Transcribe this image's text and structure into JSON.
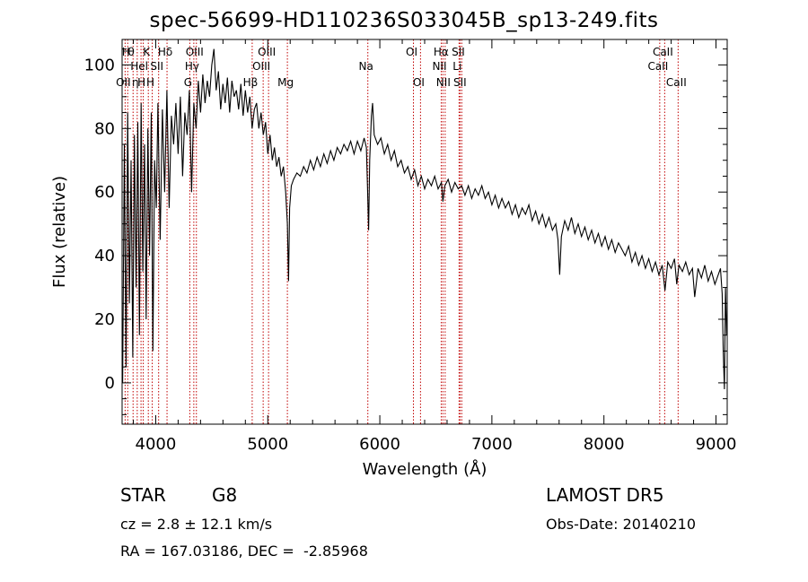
{
  "title": "spec-56699-HD110236S033045B_sp13-249.fits",
  "info": {
    "class_label": "STAR",
    "subclass_label": "G8",
    "survey": "LAMOST DR5",
    "cz": "cz = 2.8 ± 12.1 km/s",
    "obs_date": "Obs-Date: 20140210",
    "coords": "RA = 167.03186, DEC =  -2.85968"
  },
  "chart_data": {
    "type": "line",
    "title": "spec-56699-HD110236S033045B_sp13-249.fits",
    "xlabel": "Wavelength (Å)",
    "ylabel": "Flux (relative)",
    "xlim": [
      3700,
      9100
    ],
    "ylim": [
      -13,
      108
    ],
    "xticks": [
      4000,
      5000,
      6000,
      7000,
      8000,
      9000
    ],
    "yticks": [
      0,
      20,
      40,
      60,
      80,
      100
    ],
    "x_minor_step": 200,
    "y_minor_step": 5,
    "line_color": "#000000",
    "marker_color": "#c00000",
    "spectrum": [
      [
        3705,
        0
      ],
      [
        3720,
        75
      ],
      [
        3735,
        5
      ],
      [
        3750,
        85
      ],
      [
        3765,
        25
      ],
      [
        3780,
        70
      ],
      [
        3795,
        8
      ],
      [
        3810,
        78
      ],
      [
        3825,
        30
      ],
      [
        3840,
        82
      ],
      [
        3855,
        15
      ],
      [
        3870,
        88
      ],
      [
        3885,
        35
      ],
      [
        3900,
        75
      ],
      [
        3915,
        20
      ],
      [
        3930,
        80
      ],
      [
        3945,
        40
      ],
      [
        3960,
        85
      ],
      [
        3975,
        10
      ],
      [
        3990,
        70
      ],
      [
        4005,
        55
      ],
      [
        4020,
        88
      ],
      [
        4040,
        45
      ],
      [
        4060,
        86
      ],
      [
        4080,
        60
      ],
      [
        4100,
        92
      ],
      [
        4120,
        55
      ],
      [
        4140,
        84
      ],
      [
        4160,
        75
      ],
      [
        4180,
        88
      ],
      [
        4200,
        72
      ],
      [
        4220,
        90
      ],
      [
        4240,
        65
      ],
      [
        4260,
        85
      ],
      [
        4280,
        78
      ],
      [
        4300,
        92
      ],
      [
        4320,
        60
      ],
      [
        4340,
        88
      ],
      [
        4360,
        80
      ],
      [
        4380,
        95
      ],
      [
        4400,
        85
      ],
      [
        4420,
        97
      ],
      [
        4440,
        88
      ],
      [
        4460,
        95
      ],
      [
        4480,
        90
      ],
      [
        4500,
        100
      ],
      [
        4520,
        105
      ],
      [
        4540,
        92
      ],
      [
        4560,
        98
      ],
      [
        4580,
        86
      ],
      [
        4600,
        94
      ],
      [
        4620,
        88
      ],
      [
        4640,
        96
      ],
      [
        4660,
        85
      ],
      [
        4680,
        95
      ],
      [
        4700,
        90
      ],
      [
        4720,
        92
      ],
      [
        4740,
        86
      ],
      [
        4760,
        94
      ],
      [
        4780,
        84
      ],
      [
        4800,
        92
      ],
      [
        4820,
        85
      ],
      [
        4840,
        90
      ],
      [
        4860,
        80
      ],
      [
        4880,
        86
      ],
      [
        4900,
        88
      ],
      [
        4920,
        80
      ],
      [
        4940,
        85
      ],
      [
        4960,
        78
      ],
      [
        4980,
        82
      ],
      [
        5000,
        72
      ],
      [
        5020,
        78
      ],
      [
        5040,
        70
      ],
      [
        5060,
        74
      ],
      [
        5080,
        68
      ],
      [
        5100,
        71
      ],
      [
        5120,
        65
      ],
      [
        5140,
        68
      ],
      [
        5160,
        60
      ],
      [
        5175,
        50
      ],
      [
        5185,
        32
      ],
      [
        5195,
        55
      ],
      [
        5210,
        62
      ],
      [
        5230,
        64
      ],
      [
        5260,
        66
      ],
      [
        5290,
        65
      ],
      [
        5320,
        68
      ],
      [
        5350,
        66
      ],
      [
        5380,
        70
      ],
      [
        5410,
        67
      ],
      [
        5440,
        71
      ],
      [
        5470,
        68
      ],
      [
        5500,
        72
      ],
      [
        5530,
        69
      ],
      [
        5560,
        73
      ],
      [
        5590,
        70
      ],
      [
        5620,
        74
      ],
      [
        5650,
        72
      ],
      [
        5680,
        75
      ],
      [
        5710,
        73
      ],
      [
        5740,
        76
      ],
      [
        5770,
        72
      ],
      [
        5800,
        76
      ],
      [
        5830,
        73
      ],
      [
        5860,
        77
      ],
      [
        5880,
        74
      ],
      [
        5890,
        62
      ],
      [
        5900,
        48
      ],
      [
        5910,
        70
      ],
      [
        5925,
        84
      ],
      [
        5935,
        88
      ],
      [
        5950,
        78
      ],
      [
        5980,
        75
      ],
      [
        6010,
        77
      ],
      [
        6040,
        72
      ],
      [
        6070,
        75
      ],
      [
        6100,
        70
      ],
      [
        6130,
        73
      ],
      [
        6160,
        68
      ],
      [
        6190,
        70
      ],
      [
        6220,
        66
      ],
      [
        6250,
        68
      ],
      [
        6280,
        64
      ],
      [
        6310,
        67
      ],
      [
        6340,
        62
      ],
      [
        6370,
        65
      ],
      [
        6400,
        61
      ],
      [
        6430,
        64
      ],
      [
        6460,
        62
      ],
      [
        6490,
        65
      ],
      [
        6520,
        61
      ],
      [
        6550,
        63
      ],
      [
        6563,
        57
      ],
      [
        6580,
        62
      ],
      [
        6610,
        64
      ],
      [
        6640,
        60
      ],
      [
        6670,
        63
      ],
      [
        6700,
        61
      ],
      [
        6730,
        62
      ],
      [
        6760,
        59
      ],
      [
        6790,
        62
      ],
      [
        6820,
        58
      ],
      [
        6850,
        61
      ],
      [
        6880,
        59
      ],
      [
        6910,
        62
      ],
      [
        6940,
        58
      ],
      [
        6970,
        60
      ],
      [
        7000,
        56
      ],
      [
        7030,
        59
      ],
      [
        7060,
        55
      ],
      [
        7090,
        58
      ],
      [
        7120,
        55
      ],
      [
        7150,
        57
      ],
      [
        7180,
        53
      ],
      [
        7210,
        56
      ],
      [
        7240,
        52
      ],
      [
        7270,
        55
      ],
      [
        7300,
        53
      ],
      [
        7330,
        56
      ],
      [
        7360,
        51
      ],
      [
        7390,
        54
      ],
      [
        7420,
        50
      ],
      [
        7450,
        53
      ],
      [
        7480,
        49
      ],
      [
        7510,
        52
      ],
      [
        7540,
        48
      ],
      [
        7570,
        50
      ],
      [
        7590,
        45
      ],
      [
        7605,
        34
      ],
      [
        7620,
        46
      ],
      [
        7650,
        51
      ],
      [
        7680,
        48
      ],
      [
        7710,
        52
      ],
      [
        7740,
        47
      ],
      [
        7770,
        50
      ],
      [
        7800,
        46
      ],
      [
        7830,
        49
      ],
      [
        7860,
        45
      ],
      [
        7890,
        48
      ],
      [
        7920,
        44
      ],
      [
        7950,
        47
      ],
      [
        7980,
        43
      ],
      [
        8010,
        46
      ],
      [
        8040,
        42
      ],
      [
        8070,
        45
      ],
      [
        8100,
        41
      ],
      [
        8130,
        44
      ],
      [
        8160,
        42
      ],
      [
        8190,
        40
      ],
      [
        8220,
        43
      ],
      [
        8250,
        38
      ],
      [
        8280,
        41
      ],
      [
        8310,
        37
      ],
      [
        8340,
        40
      ],
      [
        8370,
        36
      ],
      [
        8400,
        39
      ],
      [
        8430,
        35
      ],
      [
        8460,
        38
      ],
      [
        8490,
        34
      ],
      [
        8520,
        37
      ],
      [
        8545,
        29
      ],
      [
        8570,
        38
      ],
      [
        8600,
        36
      ],
      [
        8630,
        39
      ],
      [
        8650,
        31
      ],
      [
        8670,
        37
      ],
      [
        8700,
        35
      ],
      [
        8730,
        38
      ],
      [
        8760,
        34
      ],
      [
        8790,
        36
      ],
      [
        8810,
        27
      ],
      [
        8840,
        36
      ],
      [
        8870,
        33
      ],
      [
        8900,
        37
      ],
      [
        8930,
        32
      ],
      [
        8960,
        35
      ],
      [
        8990,
        31
      ],
      [
        9020,
        34
      ],
      [
        9040,
        36
      ],
      [
        9055,
        28
      ],
      [
        9065,
        10
      ],
      [
        9075,
        -2
      ],
      [
        9085,
        30
      ],
      [
        9095,
        15
      ]
    ],
    "line_markers": [
      {
        "x": 3727,
        "label": "OII",
        "row": 3
      },
      {
        "x": 3750,
        "label": "H",
        "row": 1
      },
      {
        "x": 3798,
        "label": "θ",
        "row": 1
      },
      {
        "x": 3835,
        "label": "η",
        "row": 3
      },
      {
        "x": 3869,
        "label": "Hel",
        "row": 2
      },
      {
        "x": 3889,
        "label": "H",
        "row": 3
      },
      {
        "x": 3934,
        "label": "K",
        "row": 1
      },
      {
        "x": 3969,
        "label": "H",
        "row": 3
      },
      {
        "x": 4026,
        "label": "SII",
        "row": 2
      },
      {
        "x": 4101,
        "label": "Hδ",
        "row": 1
      },
      {
        "x": 4304,
        "label": "G",
        "row": 3
      },
      {
        "x": 4340,
        "label": "Hγ",
        "row": 2
      },
      {
        "x": 4363,
        "label": "OIII",
        "row": 1
      },
      {
        "x": 4861,
        "label": "Hβ",
        "row": 3
      },
      {
        "x": 4959,
        "label": "OIII",
        "row": 2
      },
      {
        "x": 5007,
        "label": "OIII",
        "row": 1
      },
      {
        "x": 5175,
        "label": "Mg",
        "row": 3
      },
      {
        "x": 5893,
        "label": "Na",
        "row": 2
      },
      {
        "x": 6300,
        "label": "OI",
        "row": 1
      },
      {
        "x": 6363,
        "label": "OI",
        "row": 3
      },
      {
        "x": 6548,
        "label": "NII",
        "row": 2
      },
      {
        "x": 6563,
        "label": "Hα",
        "row": 1
      },
      {
        "x": 6583,
        "label": "NII",
        "row": 3
      },
      {
        "x": 6707,
        "label": "Li",
        "row": 2
      },
      {
        "x": 6716,
        "label": "SII",
        "row": 1
      },
      {
        "x": 6731,
        "label": "SII",
        "row": 3
      },
      {
        "x": 8498,
        "label": "CaII",
        "row": 2
      },
      {
        "x": 8542,
        "label": "CaII",
        "row": 1
      },
      {
        "x": 8662,
        "label": "CaII",
        "row": 3
      }
    ]
  }
}
